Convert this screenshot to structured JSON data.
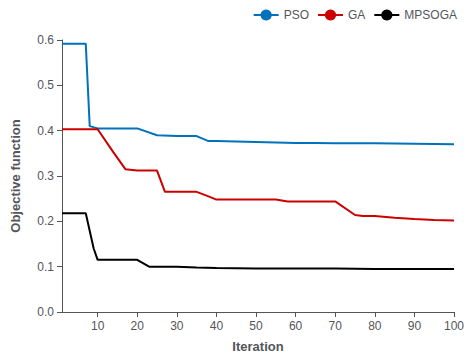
{
  "chart_data": {
    "type": "line",
    "xlabel": "Iteration",
    "ylabel": "Objective function",
    "xlim": [
      1,
      100
    ],
    "ylim": [
      0,
      0.6
    ],
    "xticks": [
      10,
      20,
      30,
      40,
      50,
      60,
      70,
      80,
      90,
      100
    ],
    "yticks": [
      {
        "value": 0,
        "label": "0.0"
      },
      0.1,
      0.2,
      0.3,
      0.4,
      0.5,
      0.6
    ],
    "grid": false,
    "legend": "upper right",
    "series": [
      {
        "name": "PSO",
        "color": "#0072BD",
        "x": [
          1,
          5,
          7,
          8,
          10,
          15,
          20,
          25,
          30,
          35,
          38,
          40,
          50,
          60,
          65,
          70,
          80,
          90,
          100
        ],
        "values": [
          0.592,
          0.592,
          0.592,
          0.41,
          0.405,
          0.405,
          0.405,
          0.39,
          0.388,
          0.388,
          0.377,
          0.377,
          0.375,
          0.373,
          0.373,
          0.372,
          0.372,
          0.371,
          0.37
        ]
      },
      {
        "name": "GA",
        "color": "#CC0000",
        "x": [
          1,
          5,
          8,
          10,
          14,
          17,
          20,
          25,
          27,
          30,
          35,
          38,
          40,
          45,
          50,
          55,
          58,
          60,
          65,
          70,
          75,
          77,
          80,
          85,
          90,
          95,
          100
        ],
        "values": [
          0.403,
          0.403,
          0.403,
          0.403,
          0.352,
          0.315,
          0.312,
          0.312,
          0.265,
          0.265,
          0.265,
          0.255,
          0.248,
          0.248,
          0.248,
          0.248,
          0.244,
          0.244,
          0.244,
          0.244,
          0.214,
          0.212,
          0.212,
          0.208,
          0.205,
          0.203,
          0.202
        ]
      },
      {
        "name": "MPSOGA",
        "color": "#000000",
        "x": [
          1,
          3,
          5,
          7,
          9,
          10,
          12,
          15,
          20,
          23,
          25,
          27,
          30,
          35,
          40,
          50,
          60,
          70,
          80,
          90,
          100
        ],
        "values": [
          0.218,
          0.218,
          0.218,
          0.218,
          0.14,
          0.115,
          0.115,
          0.115,
          0.115,
          0.1,
          0.1,
          0.1,
          0.1,
          0.098,
          0.097,
          0.096,
          0.096,
          0.096,
          0.095,
          0.095,
          0.095
        ]
      }
    ]
  }
}
